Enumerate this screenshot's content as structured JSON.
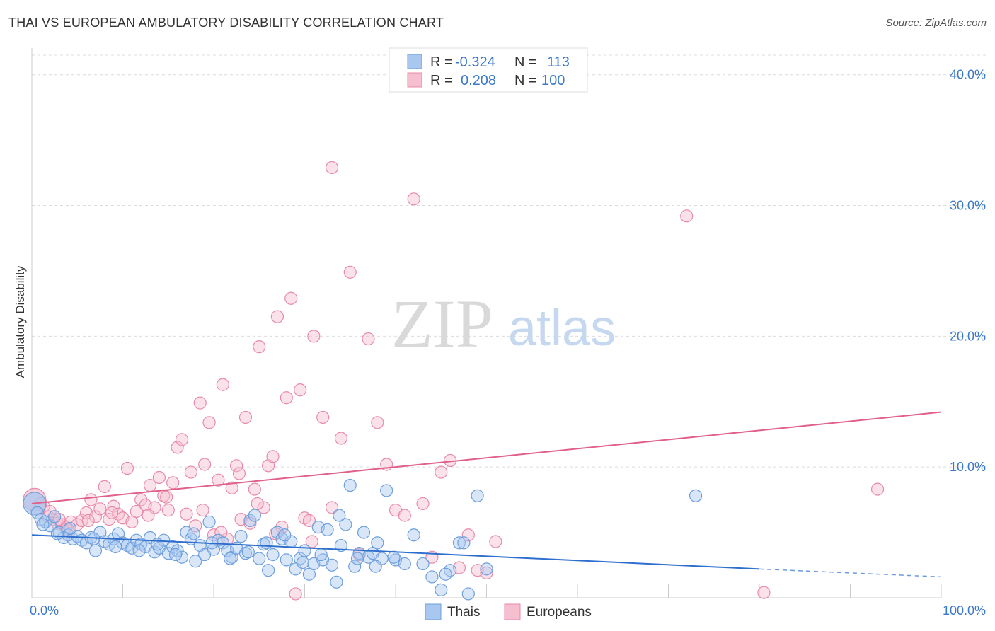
{
  "title": "THAI VS EUROPEAN AMBULATORY DISABILITY CORRELATION CHART",
  "source": "Source: ZipAtlas.com",
  "watermark": {
    "part1": "ZIP",
    "part2": "atlas"
  },
  "legend_top": [
    {
      "r_label": "R =",
      "r_value": "-0.324",
      "n_label": "N =",
      "n_value": "113",
      "color": "#a9c8f0",
      "stroke": "#6d9fdc"
    },
    {
      "r_label": "R =",
      "r_value": "0.208",
      "n_label": "N =",
      "n_value": "100",
      "color": "#f6bfd0",
      "stroke": "#e88aa8"
    }
  ],
  "legend_bottom": [
    {
      "label": "Thais",
      "color": "#a9c8f0",
      "stroke": "#6d9fdc"
    },
    {
      "label": "Europeans",
      "color": "#f6bfd0",
      "stroke": "#e88aa8"
    }
  ],
  "chart_data": {
    "type": "scatter",
    "title": "THAI VS EUROPEAN AMBULATORY DISABILITY CORRELATION CHART",
    "xlabel": "",
    "ylabel": "Ambulatory Disability",
    "xlim": [
      0,
      100
    ],
    "ylim": [
      0,
      41.5
    ],
    "x_tick_labels": [
      "0.0%",
      "100.0%"
    ],
    "y_tick_labels": [
      "10.0%",
      "20.0%",
      "30.0%",
      "40.0%"
    ],
    "y_ticks": [
      10,
      20,
      30,
      40
    ],
    "grid": true,
    "legend_position": "top-center",
    "series": [
      {
        "name": "Thais",
        "color": "#6d9fdc",
        "fill": "#a9c8f0",
        "trend": {
          "x0": 0,
          "y0": 4.8,
          "x1": 80,
          "y1": 2.2,
          "dashed_to_x": 100,
          "dashed_to_y": 1.6,
          "color": "#2e6fce"
        },
        "points": [
          [
            0.3,
            7.2
          ],
          [
            0.6,
            6.5
          ],
          [
            1.0,
            6.0
          ],
          [
            1.5,
            5.8
          ],
          [
            2.0,
            5.5
          ],
          [
            2.5,
            6.2
          ],
          [
            3.0,
            5.0
          ],
          [
            3.5,
            4.6
          ],
          [
            4.0,
            4.8
          ],
          [
            4.5,
            4.5
          ],
          [
            5.0,
            4.7
          ],
          [
            5.5,
            4.4
          ],
          [
            6.0,
            4.2
          ],
          [
            6.5,
            4.6
          ],
          [
            7.0,
            3.6
          ],
          [
            7.5,
            5.0
          ],
          [
            8.0,
            4.3
          ],
          [
            8.5,
            4.1
          ],
          [
            9.0,
            4.5
          ],
          [
            9.5,
            4.9
          ],
          [
            10.0,
            4.2
          ],
          [
            10.5,
            4.0
          ],
          [
            11.0,
            3.8
          ],
          [
            11.5,
            4.4
          ],
          [
            12.0,
            4.1
          ],
          [
            12.5,
            3.9
          ],
          [
            13.0,
            4.6
          ],
          [
            13.5,
            3.5
          ],
          [
            14.0,
            3.8
          ],
          [
            14.5,
            4.4
          ],
          [
            15.0,
            3.4
          ],
          [
            15.5,
            3.9
          ],
          [
            16.0,
            3.6
          ],
          [
            16.5,
            3.1
          ],
          [
            17.0,
            5.0
          ],
          [
            17.5,
            4.5
          ],
          [
            18.0,
            2.8
          ],
          [
            18.5,
            4.0
          ],
          [
            19.0,
            3.3
          ],
          [
            19.5,
            5.8
          ],
          [
            20.0,
            3.7
          ],
          [
            20.5,
            4.4
          ],
          [
            21.0,
            4.2
          ],
          [
            21.5,
            3.6
          ],
          [
            22.0,
            3.1
          ],
          [
            22.5,
            3.8
          ],
          [
            23.0,
            4.7
          ],
          [
            23.5,
            3.4
          ],
          [
            24.0,
            5.9
          ],
          [
            24.5,
            6.3
          ],
          [
            25.0,
            3.0
          ],
          [
            25.5,
            4.1
          ],
          [
            26.0,
            2.1
          ],
          [
            26.5,
            3.3
          ],
          [
            27.0,
            5.0
          ],
          [
            27.5,
            4.5
          ],
          [
            28.0,
            2.9
          ],
          [
            28.5,
            4.3
          ],
          [
            29.0,
            2.2
          ],
          [
            29.5,
            3.0
          ],
          [
            30.0,
            3.6
          ],
          [
            30.5,
            1.8
          ],
          [
            31.0,
            2.6
          ],
          [
            31.5,
            5.4
          ],
          [
            32.0,
            2.9
          ],
          [
            32.5,
            5.2
          ],
          [
            33.0,
            2.5
          ],
          [
            33.5,
            1.2
          ],
          [
            34.0,
            4.0
          ],
          [
            34.5,
            5.6
          ],
          [
            35.0,
            8.6
          ],
          [
            35.5,
            2.4
          ],
          [
            36.0,
            3.4
          ],
          [
            36.5,
            5.0
          ],
          [
            37.0,
            3.1
          ],
          [
            37.5,
            3.4
          ],
          [
            38.0,
            4.2
          ],
          [
            38.5,
            3.0
          ],
          [
            39.0,
            8.2
          ],
          [
            40.0,
            2.9
          ],
          [
            41.0,
            2.6
          ],
          [
            42.0,
            4.8
          ],
          [
            43.0,
            2.6
          ],
          [
            44.0,
            1.6
          ],
          [
            45.0,
            0.6
          ],
          [
            46.0,
            2.1
          ],
          [
            47.0,
            4.2
          ],
          [
            48.0,
            0.3
          ],
          [
            49.0,
            7.8
          ],
          [
            50.0,
            2.2
          ],
          [
            1.2,
            5.6
          ],
          [
            2.8,
            4.9
          ],
          [
            4.2,
            5.3
          ],
          [
            6.8,
            4.5
          ],
          [
            9.2,
            3.9
          ],
          [
            11.8,
            3.6
          ],
          [
            13.8,
            4.1
          ],
          [
            15.8,
            3.3
          ],
          [
            17.8,
            4.9
          ],
          [
            19.8,
            4.2
          ],
          [
            21.8,
            3.0
          ],
          [
            23.8,
            3.5
          ],
          [
            25.8,
            4.2
          ],
          [
            27.8,
            4.8
          ],
          [
            29.8,
            2.7
          ],
          [
            31.8,
            3.3
          ],
          [
            33.8,
            6.3
          ],
          [
            35.8,
            3.0
          ],
          [
            37.8,
            2.4
          ],
          [
            39.8,
            3.1
          ],
          [
            45.5,
            1.8
          ],
          [
            47.5,
            4.2
          ],
          [
            73.0,
            7.8
          ]
        ]
      },
      {
        "name": "Europeans",
        "color": "#e88aa8",
        "fill": "#f6bfd0",
        "trend": {
          "x0": 0,
          "y0": 7.2,
          "x1": 100,
          "y1": 14.2,
          "color": "#e0608a"
        },
        "points": [
          [
            0.3,
            7.5
          ],
          [
            0.8,
            6.8
          ],
          [
            1.3,
            7.0
          ],
          [
            1.8,
            6.2
          ],
          [
            2.3,
            6.0
          ],
          [
            2.8,
            5.7
          ],
          [
            3.3,
            5.6
          ],
          [
            3.8,
            5.4
          ],
          [
            4.3,
            5.8
          ],
          [
            5.0,
            5.6
          ],
          [
            5.5,
            5.9
          ],
          [
            6.0,
            6.5
          ],
          [
            6.5,
            7.5
          ],
          [
            7.0,
            6.2
          ],
          [
            7.5,
            6.8
          ],
          [
            8.0,
            8.5
          ],
          [
            8.5,
            6.0
          ],
          [
            9.0,
            7.0
          ],
          [
            9.5,
            6.4
          ],
          [
            10.0,
            6.1
          ],
          [
            10.5,
            9.9
          ],
          [
            11.0,
            5.8
          ],
          [
            11.5,
            6.6
          ],
          [
            12.0,
            7.5
          ],
          [
            12.5,
            7.1
          ],
          [
            13.0,
            8.6
          ],
          [
            13.5,
            6.9
          ],
          [
            14.0,
            9.2
          ],
          [
            14.5,
            7.8
          ],
          [
            15.0,
            6.7
          ],
          [
            15.5,
            8.8
          ],
          [
            16.0,
            11.5
          ],
          [
            16.5,
            12.1
          ],
          [
            17.0,
            6.4
          ],
          [
            17.5,
            9.6
          ],
          [
            18.0,
            5.5
          ],
          [
            18.5,
            14.9
          ],
          [
            19.0,
            10.2
          ],
          [
            19.5,
            13.4
          ],
          [
            20.0,
            4.8
          ],
          [
            20.5,
            9.0
          ],
          [
            21.0,
            16.3
          ],
          [
            21.5,
            4.5
          ],
          [
            22.0,
            8.4
          ],
          [
            22.5,
            10.1
          ],
          [
            23.0,
            6.0
          ],
          [
            23.5,
            13.8
          ],
          [
            24.0,
            5.7
          ],
          [
            24.5,
            8.3
          ],
          [
            25.0,
            19.2
          ],
          [
            25.5,
            6.9
          ],
          [
            26.0,
            10.1
          ],
          [
            26.5,
            10.8
          ],
          [
            27.0,
            21.5
          ],
          [
            27.5,
            5.4
          ],
          [
            28.0,
            15.3
          ],
          [
            28.5,
            22.9
          ],
          [
            29.0,
            0.3
          ],
          [
            29.5,
            15.9
          ],
          [
            30.0,
            6.1
          ],
          [
            30.5,
            5.9
          ],
          [
            31.0,
            20.0
          ],
          [
            32.0,
            13.8
          ],
          [
            33.0,
            6.9
          ],
          [
            34.0,
            12.2
          ],
          [
            35.0,
            24.9
          ],
          [
            36.0,
            3.3
          ],
          [
            37.0,
            19.8
          ],
          [
            38.0,
            13.4
          ],
          [
            39.0,
            10.2
          ],
          [
            40.0,
            6.7
          ],
          [
            41.0,
            6.3
          ],
          [
            42.0,
            30.5
          ],
          [
            43.0,
            7.2
          ],
          [
            44.0,
            3.1
          ],
          [
            45.0,
            9.6
          ],
          [
            46.0,
            10.5
          ],
          [
            47.0,
            2.3
          ],
          [
            48.0,
            4.8
          ],
          [
            49.0,
            2.1
          ],
          [
            50.0,
            1.9
          ],
          [
            51.0,
            4.3
          ],
          [
            1.0,
            7.2
          ],
          [
            2.0,
            6.6
          ],
          [
            3.0,
            6.0
          ],
          [
            4.0,
            5.2
          ],
          [
            6.2,
            5.9
          ],
          [
            8.8,
            6.5
          ],
          [
            12.8,
            6.3
          ],
          [
            14.8,
            7.7
          ],
          [
            18.8,
            6.7
          ],
          [
            20.8,
            5.0
          ],
          [
            22.8,
            9.5
          ],
          [
            24.8,
            7.2
          ],
          [
            26.8,
            4.9
          ],
          [
            33.0,
            32.9
          ],
          [
            72.0,
            29.2
          ],
          [
            80.5,
            0.4
          ],
          [
            93.0,
            8.3
          ],
          [
            30.8,
            4.3
          ]
        ]
      }
    ]
  }
}
